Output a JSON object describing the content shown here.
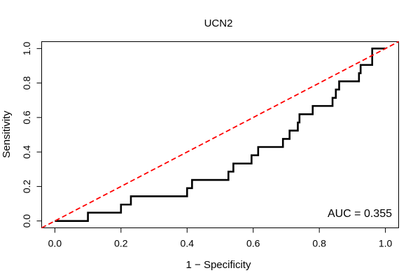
{
  "chart_data": {
    "type": "line",
    "title": "UCN2",
    "xlabel": "1 − Specificity",
    "ylabel": "Sensitivity",
    "xlim": [
      -0.04,
      1.04
    ],
    "ylim": [
      -0.04,
      1.04
    ],
    "xticks": [
      0.0,
      0.2,
      0.4,
      0.6,
      0.8,
      1.0
    ],
    "xtick_labels": [
      "0.0",
      "0.2",
      "0.4",
      "0.6",
      "0.8",
      "1.0"
    ],
    "yticks": [
      0.0,
      0.2,
      0.4,
      0.6,
      0.8,
      1.0
    ],
    "ytick_labels": [
      "0.0",
      "0.2",
      "0.4",
      "0.6",
      "0.8",
      "1.0"
    ],
    "grid": false,
    "annotation": "AUC = 0.355",
    "series": [
      {
        "color": "#000000",
        "style": "solid",
        "x": [
          0.0,
          0.1,
          0.1,
          0.2,
          0.2,
          0.23,
          0.23,
          0.4,
          0.4,
          0.415,
          0.415,
          0.525,
          0.525,
          0.54,
          0.54,
          0.595,
          0.595,
          0.615,
          0.615,
          0.69,
          0.69,
          0.71,
          0.71,
          0.735,
          0.735,
          0.74,
          0.74,
          0.76,
          0.76,
          0.78,
          0.78,
          0.84,
          0.84,
          0.85,
          0.85,
          0.86,
          0.86,
          0.92,
          0.92,
          0.925,
          0.925,
          0.96,
          0.96,
          1.0
        ],
        "y": [
          0.0,
          0.0,
          0.048,
          0.048,
          0.095,
          0.095,
          0.143,
          0.143,
          0.19,
          0.19,
          0.238,
          0.238,
          0.286,
          0.286,
          0.333,
          0.333,
          0.381,
          0.381,
          0.429,
          0.429,
          0.476,
          0.476,
          0.524,
          0.524,
          0.571,
          0.571,
          0.619,
          0.619,
          0.619,
          0.619,
          0.667,
          0.667,
          0.714,
          0.714,
          0.762,
          0.762,
          0.81,
          0.81,
          0.857,
          0.857,
          0.905,
          0.905,
          1.0,
          1.0
        ]
      },
      {
        "color": "#ff0000",
        "style": "dashed",
        "x": [
          -0.04,
          1.04
        ],
        "y": [
          -0.04,
          1.04
        ]
      }
    ]
  }
}
